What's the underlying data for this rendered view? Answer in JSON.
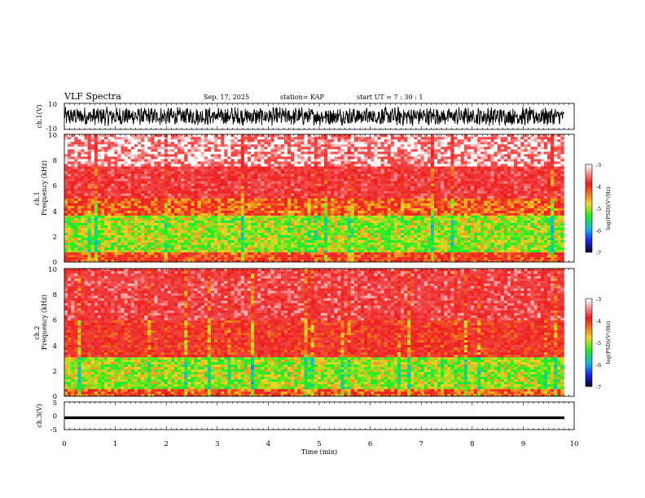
{
  "header": {
    "title": "VLF Spectra",
    "date": "Sep. 17, 2025",
    "station": "station= KAP",
    "start": "start  UT  =   7 : 30 : 1"
  },
  "colors": {
    "spec_low": "#2ff01a",
    "spec_mid": "#e8f23a",
    "spec_high": "#ee1c1c",
    "spec_sat": "#ffffff",
    "waveform": "#000000"
  },
  "chart_data": [
    {
      "type": "line",
      "name": "ch1-waveform",
      "ylabel": "ch.1(V)",
      "ylim": [
        -10,
        10
      ],
      "yticks": [
        "10",
        "-10"
      ],
      "xlim": [
        0,
        10
      ],
      "series": [
        {
          "name": "ch.1 voltage",
          "description": "noisy broadband waveform, amplitude about -7 to +7 V"
        }
      ]
    },
    {
      "type": "heatmap",
      "name": "ch1-spectrogram",
      "ylabel_line1": "ch.1",
      "ylabel_line2": "Frequency (kHz)",
      "ylim": [
        0,
        10
      ],
      "yticks": [
        "0",
        "2",
        "4",
        "6",
        "8",
        "10"
      ],
      "xlim": [
        0,
        9.8
      ],
      "colorbar": {
        "label": "log(PSD)(V²/Hz)",
        "range": [
          -7,
          -3
        ],
        "ticks": [
          "-3",
          "-4",
          "-5",
          "-6",
          "-7"
        ]
      },
      "bands": [
        {
          "from_khz": 0,
          "to_khz": 0.8,
          "level": -4.2
        },
        {
          "from_khz": 0.8,
          "to_khz": 3.6,
          "level": -5.0
        },
        {
          "from_khz": 3.6,
          "to_khz": 5.0,
          "level": -4.3
        },
        {
          "from_khz": 5.0,
          "to_khz": 7.5,
          "level": -3.7
        },
        {
          "from_khz": 7.5,
          "to_khz": 10,
          "level": -3.2
        }
      ]
    },
    {
      "type": "heatmap",
      "name": "ch2-spectrogram",
      "ylabel_line1": "ch.2",
      "ylabel_line2": "Frequency (kHz)",
      "ylim": [
        0,
        10
      ],
      "yticks": [
        "0",
        "2",
        "4",
        "6",
        "8",
        "10"
      ],
      "xlim": [
        0,
        9.8
      ],
      "colorbar": {
        "label": "log(PSD)(V²/Hz)",
        "range": [
          -7,
          -3
        ],
        "ticks": [
          "-3",
          "-4",
          "-5",
          "-6",
          "-7"
        ]
      },
      "bands": [
        {
          "from_khz": 0,
          "to_khz": 0.6,
          "level": -4.3
        },
        {
          "from_khz": 0.6,
          "to_khz": 3.0,
          "level": -5.0
        },
        {
          "from_khz": 3.0,
          "to_khz": 6.0,
          "level": -4.0
        },
        {
          "from_khz": 6.0,
          "to_khz": 10,
          "level": -3.6
        }
      ]
    },
    {
      "type": "line",
      "name": "ch3-waveform",
      "ylabel": "ch.3(V)",
      "ylim": [
        -5,
        5
      ],
      "yticks": [
        "5",
        "0",
        "-5"
      ],
      "xlim": [
        0,
        10
      ],
      "series": [
        {
          "name": "ch.3 voltage",
          "description": "thick band centred near -0.7 V"
        }
      ]
    }
  ],
  "xaxis": {
    "label": "Time (min)",
    "range": [
      0,
      10
    ],
    "ticks": [
      "0",
      "1",
      "2",
      "3",
      "4",
      "5",
      "6",
      "7",
      "8",
      "9",
      "10"
    ]
  }
}
